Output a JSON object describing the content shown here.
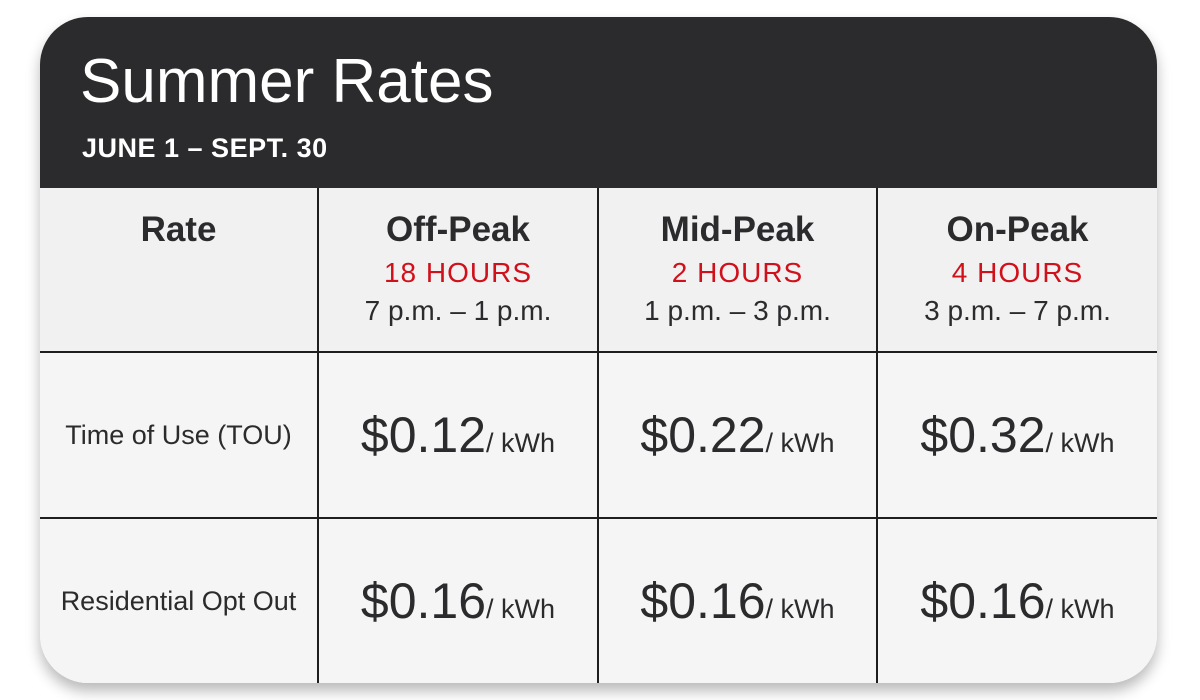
{
  "header": {
    "title": "Summer Rates",
    "subtitle": "JUNE 1 – SEPT. 30"
  },
  "table": {
    "corner_label": "Rate",
    "columns": [
      {
        "name": "Off-Peak",
        "hours": "18 HOURS",
        "time": "7 p.m. – 1 p.m."
      },
      {
        "name": "Mid-Peak",
        "hours": "2 HOURS",
        "time": "1 p.m. – 3 p.m."
      },
      {
        "name": "On-Peak",
        "hours": "4 HOURS",
        "time": "3 p.m. – 7 p.m."
      }
    ],
    "rows": [
      {
        "label": "Time of Use (TOU)",
        "prices": [
          "$0.12",
          "$0.22",
          "$0.32"
        ],
        "unit": "/ kWh"
      },
      {
        "label": "Residential Opt Out",
        "prices": [
          "$0.16",
          "$0.16",
          "$0.16"
        ],
        "unit": "/ kWh"
      }
    ]
  },
  "colors": {
    "header_bg": "#2b2b2d",
    "accent_red": "#d0101b",
    "card_bg": "#f5f5f5"
  }
}
